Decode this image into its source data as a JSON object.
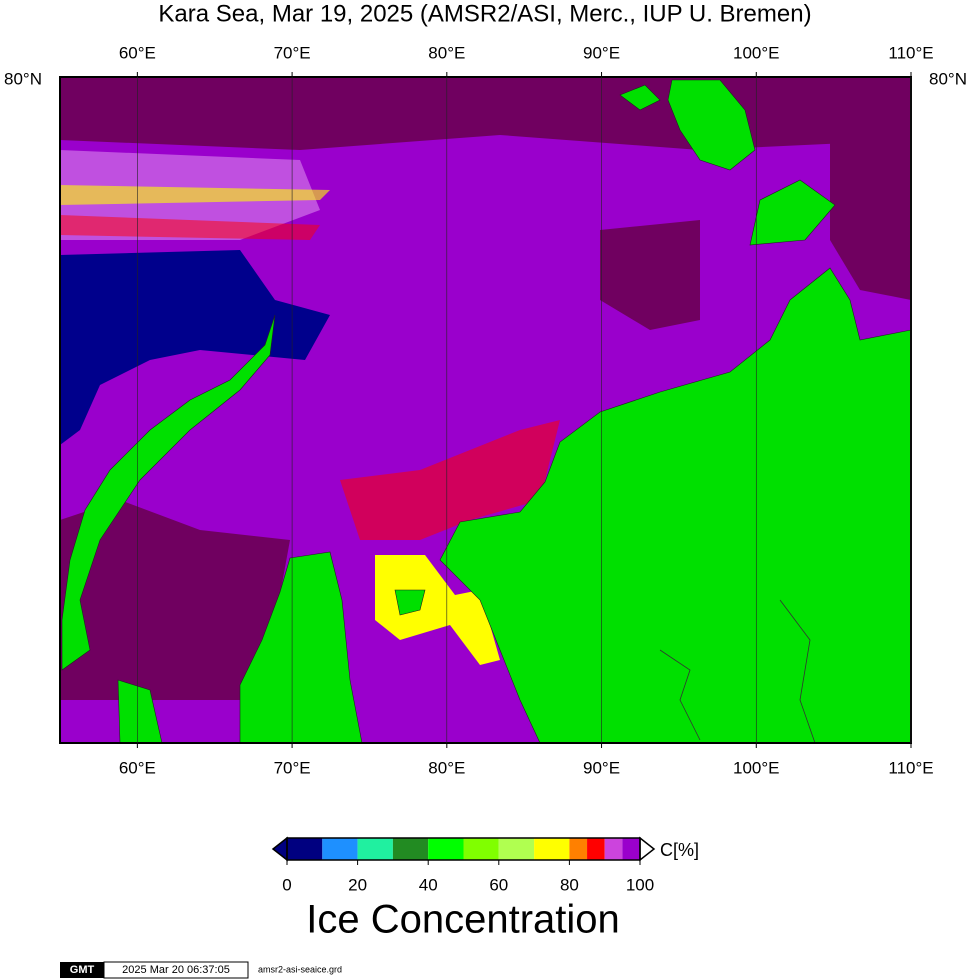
{
  "title": "Kara Sea, Mar 19, 2025 (AMSR2/ASI, Merc., IUP U. Bremen)",
  "map": {
    "xlim": [
      55,
      110
    ],
    "lon_ticks": [
      {
        "value": 60,
        "label": "60°E"
      },
      {
        "value": 70,
        "label": "70°E"
      },
      {
        "value": 80,
        "label": "80°E"
      },
      {
        "value": 90,
        "label": "90°E"
      },
      {
        "value": 100,
        "label": "100°E"
      },
      {
        "value": 110,
        "label": "110°E"
      }
    ],
    "lat_ticks": [
      {
        "value": 80,
        "label": "80°N"
      }
    ]
  },
  "colorbar": {
    "title": "Ice Concentration",
    "unit": "C[%]",
    "lim": [
      0,
      100
    ],
    "ticks": [
      0,
      20,
      40,
      60,
      80,
      100
    ],
    "bounds": [
      0,
      10,
      20,
      30,
      40,
      50,
      60,
      70,
      80,
      85,
      90,
      95,
      100
    ],
    "colors": [
      "#000080",
      "#1e90ff",
      "#20f0a0",
      "#228b22",
      "#00ff00",
      "#80ff00",
      "#b0ff50",
      "#ffff00",
      "#ff8000",
      "#ff0000",
      "#cc44dd",
      "#9a00cc"
    ]
  },
  "footer": {
    "logo": "GMT",
    "timestamp": "2025 Mar 20 06:37:05",
    "file": "amsr2-asi-seaice.grd"
  }
}
